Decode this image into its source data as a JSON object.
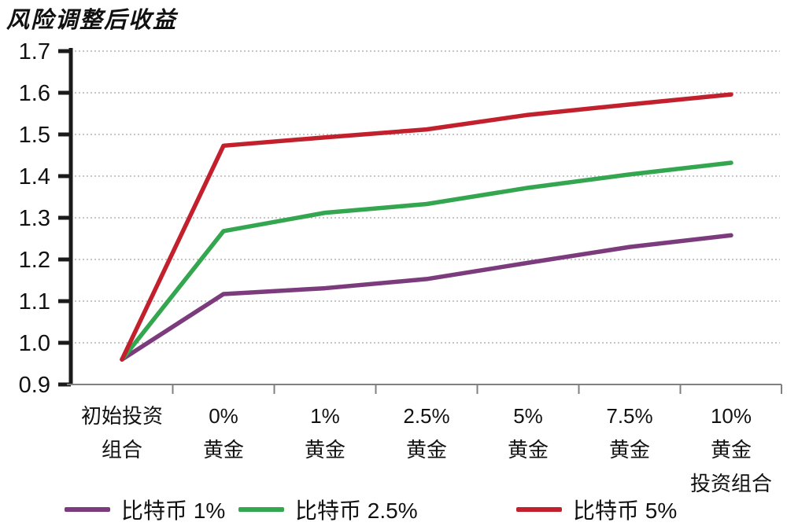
{
  "chart_data": {
    "type": "line",
    "title": "风险调整后收益",
    "categories": [
      [
        "初始投资",
        "组合"
      ],
      [
        "0%",
        "黄金"
      ],
      [
        "1%",
        "黄金"
      ],
      [
        "2.5%",
        "黄金"
      ],
      [
        "5%",
        "黄金"
      ],
      [
        "7.5%",
        "黄金"
      ],
      [
        "10%",
        "黄金",
        "投资组合"
      ]
    ],
    "series": [
      {
        "name": "比特币 1%",
        "color": "#7b3b7d",
        "values": [
          0.96,
          1.117,
          1.131,
          1.153,
          1.192,
          1.23,
          1.258
        ]
      },
      {
        "name": "比特币 2.5%",
        "color": "#33a64f",
        "values": [
          0.96,
          1.268,
          1.312,
          1.333,
          1.372,
          1.404,
          1.432
        ]
      },
      {
        "name": "比特币 5%",
        "color": "#c2202d",
        "values": [
          0.96,
          1.473,
          1.493,
          1.512,
          1.547,
          1.572,
          1.596
        ]
      }
    ],
    "ylim": [
      0.9,
      1.7
    ],
    "ytick_step": 0.1,
    "ytick_labels": [
      "0.9",
      "1.0",
      "1.1",
      "1.2",
      "1.3",
      "1.4",
      "1.5",
      "1.6",
      "1.7"
    ],
    "grid": "horizontal-dotted",
    "legend_position": "bottom",
    "colors": {
      "grid": "#b3b3b3",
      "y_axis": "#1a1a1a",
      "x_axis": "#808080",
      "text": "#111111"
    }
  }
}
